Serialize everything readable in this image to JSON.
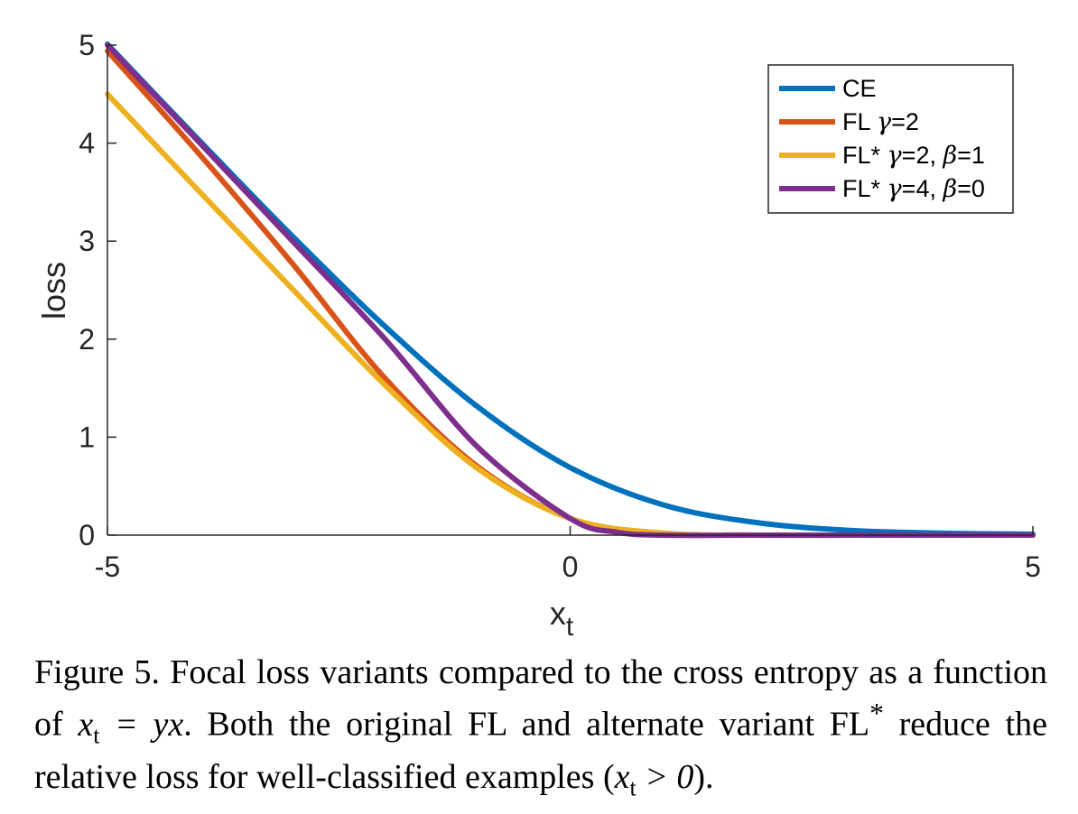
{
  "chart_data": {
    "type": "line",
    "xlabel": "x",
    "xlabel_sub": "t",
    "ylabel": "loss",
    "xlim": [
      -5,
      5
    ],
    "ylim": [
      0,
      5
    ],
    "xticks": [
      "-5",
      "0",
      "5"
    ],
    "yticks": [
      "0",
      "1",
      "2",
      "3",
      "4",
      "5"
    ],
    "grid": false,
    "legend_position": "top-right",
    "series": [
      {
        "name": "CE",
        "color": "#0072BD",
        "x": [
          -5,
          -4,
          -3,
          -2,
          -1,
          0,
          1,
          2,
          3,
          4,
          5
        ],
        "y": [
          5.01,
          4.02,
          3.05,
          2.13,
          1.31,
          0.69,
          0.31,
          0.13,
          0.05,
          0.02,
          0.01
        ]
      },
      {
        "name": "FL γ=2",
        "color": "#D95319",
        "x": [
          -5,
          -4,
          -3,
          -2,
          -1,
          0,
          1,
          2,
          3,
          4,
          5
        ],
        "y": [
          4.94,
          3.88,
          2.77,
          1.6,
          0.7,
          0.17,
          0.02,
          0.0,
          0.0,
          0.0,
          0.0
        ]
      },
      {
        "name": "FL* γ=2, β=1",
        "color": "#EDB120",
        "x": [
          -5,
          -4,
          -3,
          -2,
          -1,
          0,
          1,
          2,
          3,
          4,
          5
        ],
        "y": [
          4.5,
          3.5,
          2.51,
          1.53,
          0.68,
          0.17,
          0.02,
          0.0,
          0.0,
          0.0,
          0.0
        ]
      },
      {
        "name": "FL* γ=4, β=0",
        "color": "#7E2F8E",
        "x": [
          -5,
          -4,
          -3,
          -2,
          -1,
          0,
          0.5,
          1,
          2,
          3,
          5
        ],
        "y": [
          5.0,
          4.0,
          3.0,
          2.0,
          0.9,
          0.17,
          0.03,
          0.0,
          0.0,
          0.0,
          0.0
        ]
      }
    ],
    "legend": [
      {
        "prefix": "CE",
        "greek1": "",
        "mid": "",
        "greek2": "",
        "suffix": ""
      },
      {
        "prefix": "FL ",
        "greek1": "γ",
        "mid": "=2",
        "greek2": "",
        "suffix": ""
      },
      {
        "prefix": "FL* ",
        "greek1": "γ",
        "mid": "=2, ",
        "greek2": "β",
        "suffix": "=1"
      },
      {
        "prefix": "FL* ",
        "greek1": "γ",
        "mid": "=4, ",
        "greek2": "β",
        "suffix": "=0"
      }
    ]
  },
  "caption": {
    "part1": "Figure 5. Focal loss variants compared to the cross entropy as a function of ",
    "math1": "x",
    "math1_sub": "t",
    "math1_rest": " = yx",
    "part2": ". Both the original FL and alternate variant FL",
    "sup": "*",
    "part3": " reduce the relative loss for well-classified examples (",
    "math2": "x",
    "math2_sub": "t",
    "math2_rest": " > 0",
    "part4": ")."
  }
}
